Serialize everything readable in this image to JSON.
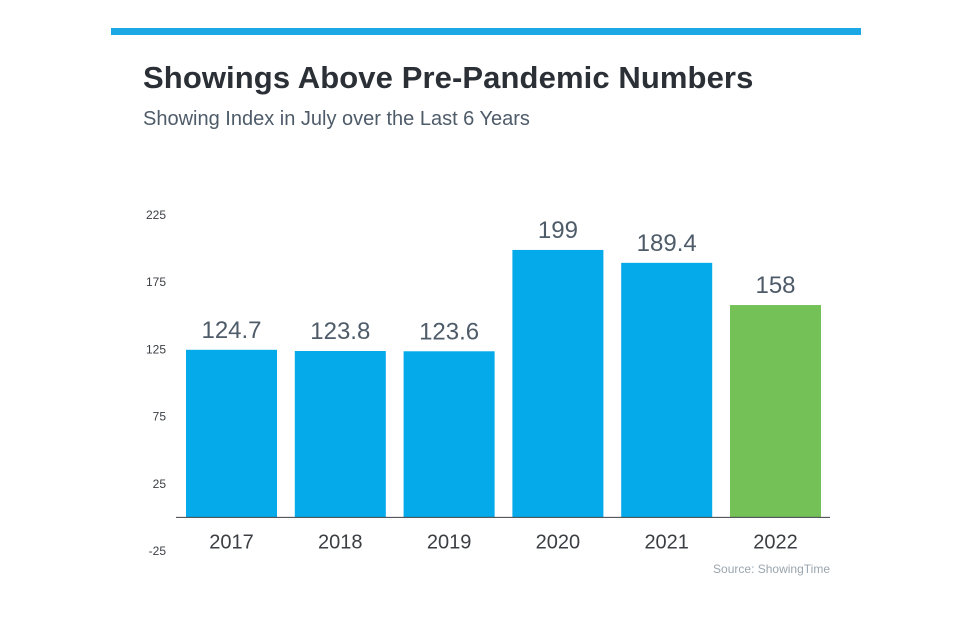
{
  "header": {
    "title": "Showings Above Pre-Pandemic Numbers",
    "subtitle": "Showing Index in July over the Last 6 Years"
  },
  "source": "Source: ShowingTime",
  "colors": {
    "accent_bar": "#1ba8e4",
    "bar_blue": "#04aaea",
    "bar_green": "#74c157"
  },
  "chart_data": {
    "type": "bar",
    "title": "Showings Above Pre-Pandemic Numbers",
    "subtitle": "Showing Index in July over the Last 6 Years",
    "categories": [
      "2017",
      "2018",
      "2019",
      "2020",
      "2021",
      "2022"
    ],
    "values": [
      124.7,
      123.8,
      123.6,
      199,
      189.4,
      158
    ],
    "value_labels": [
      "124.7",
      "123.8",
      "123.6",
      "199",
      "189.4",
      "158"
    ],
    "bar_colors": [
      "#04aaea",
      "#04aaea",
      "#04aaea",
      "#04aaea",
      "#04aaea",
      "#74c157"
    ],
    "ylim": [
      -25,
      225
    ],
    "yticks": [
      225,
      175,
      125,
      75,
      25,
      -25
    ],
    "xlabel": "",
    "ylabel": "",
    "grid": false,
    "legend": "none"
  }
}
